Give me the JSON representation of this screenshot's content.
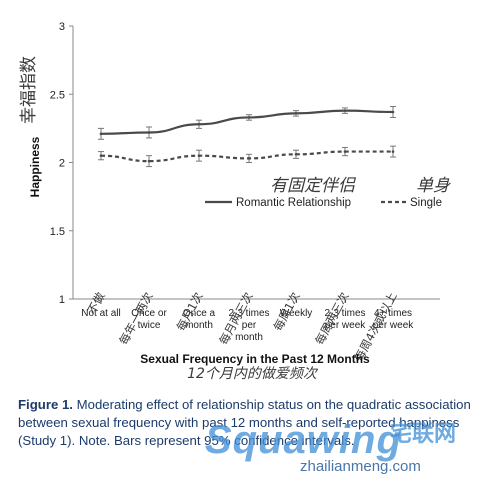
{
  "chart_data": {
    "type": "line",
    "ylabel": "Happiness",
    "ylabel_cn": "幸福指数",
    "xlabel": "Sexual Frequency in the Past 12 Months",
    "xlabel_cn": "12个月内的做爱频次",
    "ylim": [
      1,
      3
    ],
    "yticks": [
      "1",
      "1.5",
      "2",
      "2.5",
      "3"
    ],
    "categories": [
      "Not at all",
      "Once or twice",
      "Once a month",
      "2-3 times per month",
      "Weekly",
      "2-3 times per week",
      "4+ times per week"
    ],
    "category_lines": [
      [
        "Not at all"
      ],
      [
        "Once or",
        "twice"
      ],
      [
        "Once a",
        "month"
      ],
      [
        "2-3 times",
        "per",
        "month"
      ],
      [
        "Weekly"
      ],
      [
        "2-3 times",
        "per week"
      ],
      [
        "4+ times",
        "per week"
      ]
    ],
    "categories_cn": [
      "不做",
      "每年一两次",
      "每月1次",
      "每月两三次",
      "每周1次",
      "每周两三次",
      "每周4次或以上"
    ],
    "series": [
      {
        "name": "Romantic Relationship",
        "name_cn": "有固定伴侣",
        "style": "solid",
        "values": [
          2.21,
          2.22,
          2.28,
          2.33,
          2.36,
          2.38,
          2.37
        ],
        "err": [
          0.04,
          0.04,
          0.03,
          0.02,
          0.02,
          0.02,
          0.04
        ]
      },
      {
        "name": "Single",
        "name_cn": "单身",
        "style": "dashed",
        "values": [
          2.05,
          2.01,
          2.05,
          2.03,
          2.06,
          2.08,
          2.08
        ],
        "err": [
          0.03,
          0.04,
          0.04,
          0.03,
          0.03,
          0.03,
          0.04
        ]
      }
    ],
    "legend_position": "inside-middle",
    "colors": {
      "line": "#4a4a4a",
      "cn_text": "#3a3a3a",
      "caption": "#1b3b6b"
    }
  },
  "caption": {
    "label": "Figure 1.",
    "text": "Moderating effect of relationship status on the quadratic association between sexual frequency with past 12 months and self-reported happiness (Study 1). Note. Bars represent 95% confidence intervals."
  },
  "watermark": {
    "brand": "Squawing",
    "brand_cn": "宅联网",
    "url": "zhailianmeng.com"
  }
}
